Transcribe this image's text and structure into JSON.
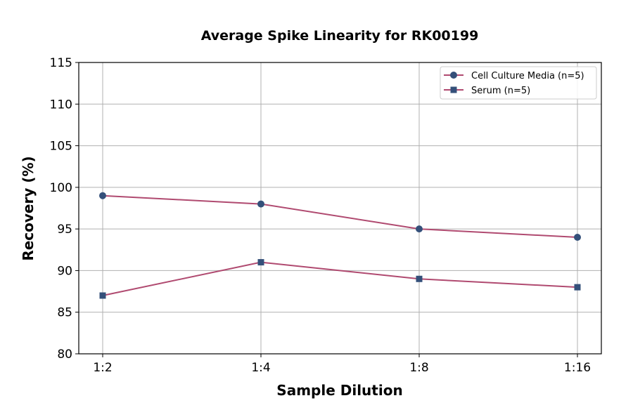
{
  "chart_data": {
    "type": "line",
    "title": "Average Spike Linearity for RK00199",
    "xlabel": "Sample Dilution",
    "ylabel": "Recovery (%)",
    "categories": [
      "1:2",
      "1:4",
      "1:8",
      "1:16"
    ],
    "ylim": [
      80,
      115
    ],
    "yticks": [
      80,
      85,
      90,
      95,
      100,
      105,
      110,
      115
    ],
    "grid": true,
    "legend_position": "top-right",
    "series": [
      {
        "name": "Cell Culture Media (n=5)",
        "values": [
          99,
          98,
          95,
          94
        ],
        "marker": "circle",
        "line_color": "#b04a70",
        "marker_color": "#34507a"
      },
      {
        "name": "Serum (n=5)",
        "values": [
          87,
          91,
          89,
          88
        ],
        "marker": "square",
        "line_color": "#b04a70",
        "marker_color": "#34507a"
      }
    ]
  }
}
